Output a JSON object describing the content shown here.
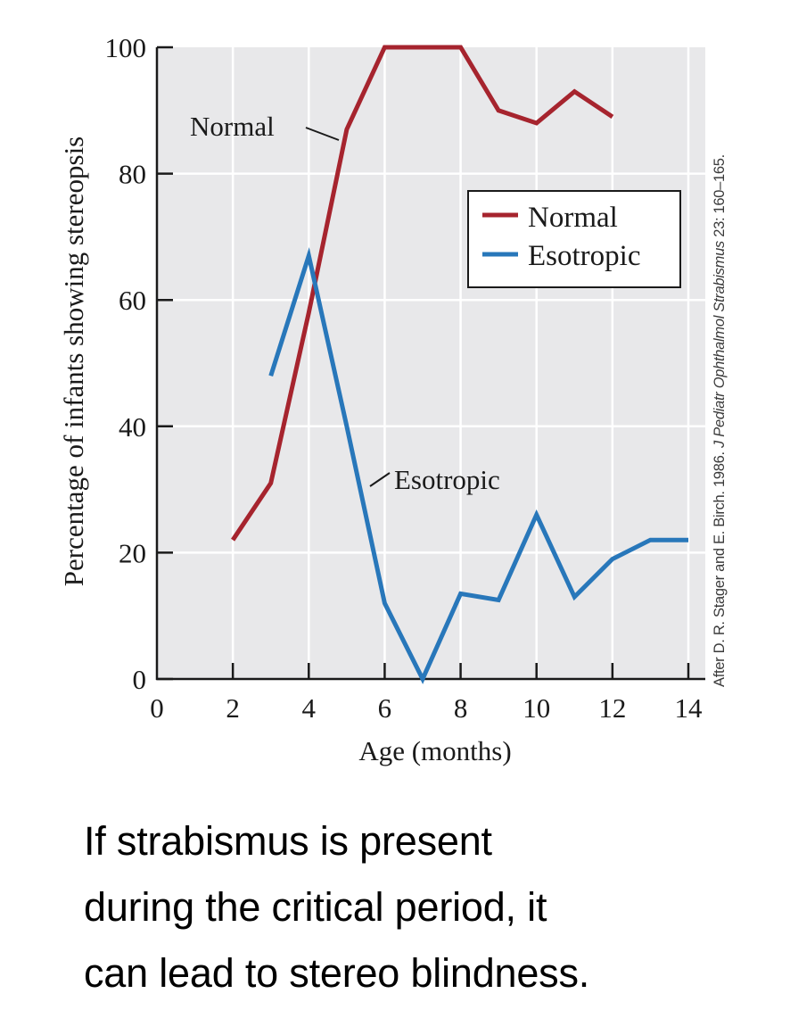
{
  "chart_data": {
    "type": "line",
    "title": "",
    "xlabel": "Age (months)",
    "ylabel": "Percentage of infants showing stereopsis",
    "xlim": [
      0,
      14
    ],
    "ylim": [
      0,
      100
    ],
    "x_ticks": [
      0,
      2,
      4,
      6,
      8,
      10,
      12,
      14
    ],
    "y_ticks": [
      0,
      20,
      40,
      60,
      80,
      100
    ],
    "grid": true,
    "legend_position": "upper right (inside plot)",
    "series": [
      {
        "name": "Normal",
        "color": "#a6242e",
        "x": [
          2,
          3,
          4,
          5,
          6,
          7,
          8,
          9,
          10,
          11,
          12
        ],
        "values": [
          22,
          31,
          58,
          87,
          100,
          100,
          100,
          90,
          88,
          93,
          89
        ]
      },
      {
        "name": "Esotropic",
        "color": "#2877ba",
        "x": [
          3,
          4,
          5,
          6,
          7,
          8,
          9,
          10,
          11,
          12,
          13,
          14
        ],
        "values": [
          48,
          67,
          40,
          12,
          0,
          13.5,
          12.5,
          26,
          13,
          19,
          22,
          22
        ]
      }
    ],
    "annotations": [
      {
        "text": "Normal",
        "points_to_series": "Normal",
        "at_x": 5
      },
      {
        "text": "Esotropic",
        "points_to_series": "Esotropic",
        "at_x": 5.7
      }
    ],
    "source_note": "After D. R. Stager and E. Birch. 1986. J Pediatr Ophthalmol Strabismus 23: 160–165."
  },
  "axes": {
    "xlabel": "Age (months)",
    "ylabel": "Percentage of infants showing stereopsis",
    "x_tick_labels": [
      "0",
      "2",
      "4",
      "6",
      "8",
      "10",
      "12",
      "14"
    ],
    "y_tick_labels": [
      "0",
      "20",
      "40",
      "60",
      "80",
      "100"
    ]
  },
  "legend": {
    "items": [
      {
        "label": "Normal",
        "color": "#a6242e"
      },
      {
        "label": "Esotropic",
        "color": "#2877ba"
      }
    ]
  },
  "annotations": {
    "normal_label": "Normal",
    "esotropic_label": "Esotropic"
  },
  "attribution": {
    "prefix": "After D. R. Stager and E. Birch. 1986. ",
    "journal": "J Pediatr Ophthalmol Strabismus",
    "suffix": " 23: 160–165."
  },
  "caption": {
    "lines": [
      "If strabismus is present",
      "during the critical period, it",
      "can lead to stereo blindness."
    ]
  },
  "style": {
    "plot_background": "#e8e8ea",
    "grid_color": "#ffffff",
    "axis_color": "#1a1a1a"
  }
}
